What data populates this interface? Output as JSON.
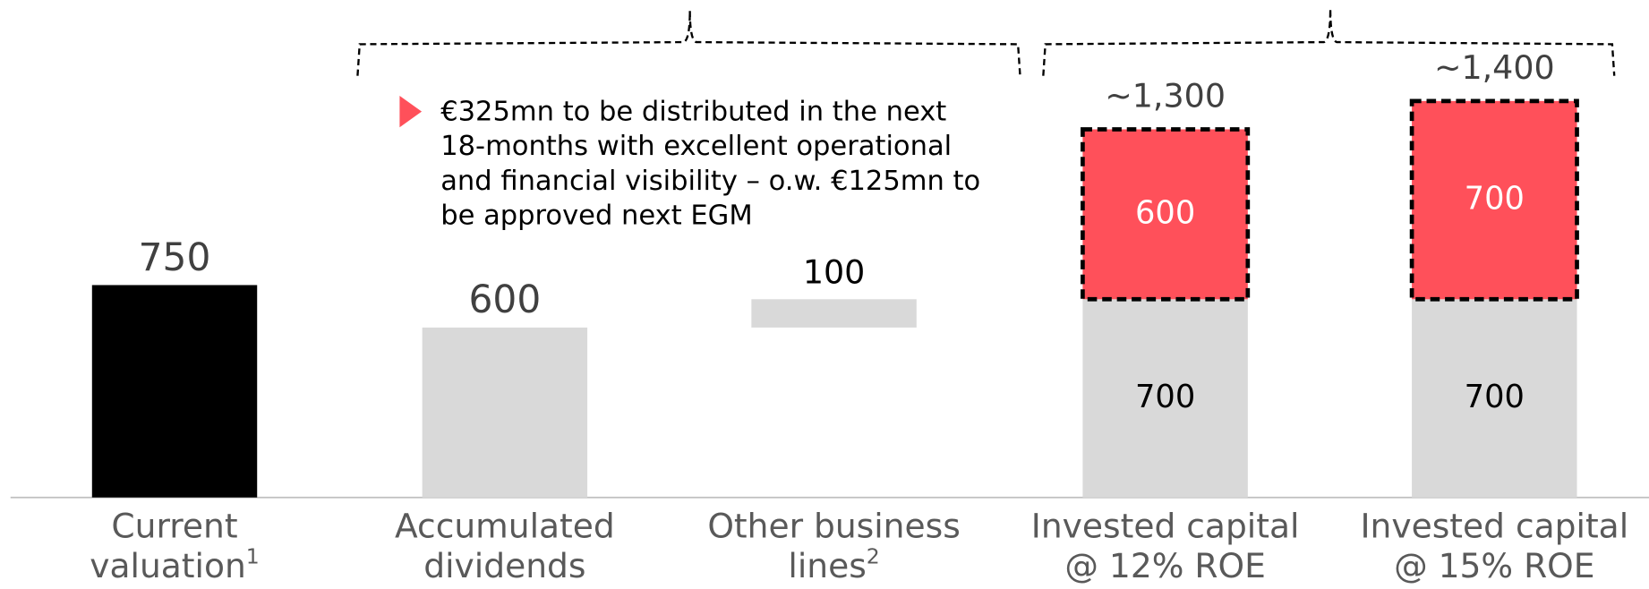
{
  "chart_data": {
    "type": "bar",
    "categories": [
      [
        "Current",
        "valuation"
      ],
      [
        "Accumulated",
        "dividends"
      ],
      [
        "Other business",
        "lines"
      ],
      [
        "Invested capital",
        "@ 12% ROE"
      ],
      [
        "Invested capital",
        "@ 15% ROE"
      ]
    ],
    "footnotes": {
      "0": "1",
      "2": "2"
    },
    "series": [
      {
        "colors": [
          "#000000",
          "#d9d9d9",
          "#d9d9d9",
          "#d9d9d9",
          "#d9d9d9"
        ],
        "values": [
          750,
          600,
          100,
          700,
          700
        ]
      },
      {
        "color": "#ff505a",
        "values": [
          null,
          null,
          null,
          600,
          700
        ]
      }
    ],
    "stacked": true,
    "float_on_previous": [
      2
    ],
    "ylim": [
      0,
      1400
    ],
    "totals": {
      "3": 1300,
      "4": 1400
    },
    "total_labels": {
      "3": "~1,300",
      "4": "~1,400"
    },
    "annotation": [
      "€325mn to be distributed in the next",
      "18-months with excellent operational",
      "and financial visibility – o.w. €125mn to",
      "be approved next EGM"
    ]
  }
}
